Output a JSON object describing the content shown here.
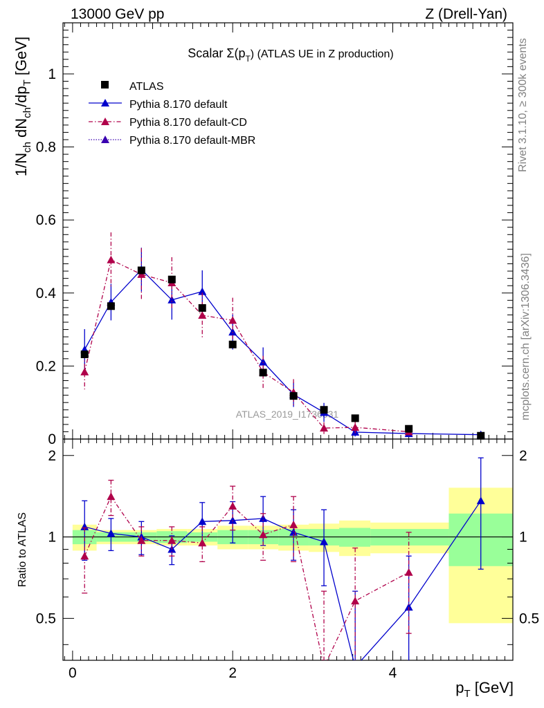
{
  "header": {
    "left_label": "13000 GeV pp",
    "right_label": "Z (Drell-Yan)"
  },
  "side_labels": {
    "rivet": "Rivet 3.1.10, ≥ 300k events",
    "mcplots": "mcplots.cern.ch [arXiv:1306.3436]"
  },
  "chart_data": {
    "type": "scatter",
    "title_main": "Scalar Σ(p",
    "title_sub": "T",
    "title_rest": ") (ATLAS UE in Z production)",
    "watermark": "ATLAS_2019_I1736531",
    "xlabel_main": "p",
    "xlabel_sub": "T",
    "xlabel_rest": " [GeV]",
    "ylabel_main": "1/N",
    "ylabel_sub1": "ch",
    "ylabel_mid": " dN",
    "ylabel_sub2": "ch",
    "ylabel_mid2": "/dp",
    "ylabel_sub3": "T",
    "ylabel_rest": " [GeV]",
    "ratio_ylabel": "Ratio to ATLAS",
    "xlim": [
      -0.12,
      5.5
    ],
    "ylim": [
      0,
      1.14
    ],
    "ratio_ylim": [
      0.35,
      2.3
    ],
    "x_ticks": [
      "0",
      "2",
      "4"
    ],
    "y_ticks": [
      "0",
      "0.2",
      "0.4",
      "0.6",
      "0.8",
      "1"
    ],
    "ratio_ticks": [
      "0.5",
      "1",
      "2"
    ],
    "data": {
      "name": "ATLAS",
      "x": [
        0.15,
        0.48,
        0.86,
        1.24,
        1.62,
        2.0,
        2.38,
        2.76,
        3.14,
        3.53,
        4.2,
        5.1
      ],
      "y": [
        0.232,
        0.364,
        0.462,
        0.437,
        0.359,
        0.259,
        0.182,
        0.118,
        0.08,
        0.057,
        0.028,
        0.009
      ],
      "bins": [
        [
          0,
          0.3
        ],
        [
          0.3,
          0.68
        ],
        [
          0.68,
          1.05
        ],
        [
          1.05,
          1.43
        ],
        [
          1.43,
          1.81
        ],
        [
          1.81,
          2.19
        ],
        [
          2.19,
          2.57
        ],
        [
          2.57,
          2.95
        ],
        [
          2.95,
          3.33
        ],
        [
          3.33,
          3.72
        ],
        [
          3.72,
          4.7
        ],
        [
          4.7,
          5.5
        ]
      ],
      "band_green": [
        0.06,
        0.04,
        0.04,
        0.05,
        0.04,
        0.06,
        0.06,
        0.07,
        0.07,
        0.08,
        0.07,
        0.22
      ],
      "band_yellow": [
        0.11,
        0.06,
        0.06,
        0.07,
        0.07,
        0.1,
        0.1,
        0.11,
        0.12,
        0.15,
        0.13,
        0.52
      ]
    },
    "series": [
      {
        "name": "Pythia 8.170 default",
        "color": "#0000cc",
        "style": "solid",
        "x": [
          0.15,
          0.48,
          0.86,
          1.24,
          1.62,
          2.0,
          2.38,
          2.76,
          3.14,
          3.53,
          4.2,
          5.1
        ],
        "y": [
          0.245,
          0.375,
          0.464,
          0.381,
          0.404,
          0.293,
          0.211,
          0.122,
          0.073,
          0.019,
          0.015,
          0.012
        ],
        "err": [
          0.056,
          0.05,
          0.06,
          0.054,
          0.058,
          0.048,
          0.04,
          0.034,
          0.026,
          0.012,
          0.009,
          0.005
        ],
        "ratio": [
          1.09,
          1.03,
          1.0,
          0.9,
          1.14,
          1.15,
          1.17,
          1.04,
          0.96,
          0.33,
          0.55,
          1.36
        ],
        "ratio_err": [
          0.27,
          0.14,
          0.14,
          0.11,
          0.2,
          0.2,
          0.24,
          0.22,
          0.3,
          0.3,
          0.3,
          0.6
        ]
      },
      {
        "name": "Pythia 8.170 default-CD",
        "color": "#b0004a",
        "style": "dashdot",
        "x": [
          0.15,
          0.48,
          0.86,
          1.24,
          1.62,
          2.0,
          2.38,
          2.76,
          3.14,
          3.53,
          4.2
        ],
        "y": [
          0.184,
          0.491,
          0.451,
          0.428,
          0.339,
          0.325,
          0.183,
          0.128,
          0.03,
          0.032,
          0.02
        ],
        "err": [
          0.048,
          0.075,
          0.072,
          0.07,
          0.062,
          0.062,
          0.045,
          0.036,
          0.016,
          0.016,
          0.01
        ],
        "ratio": [
          0.85,
          1.41,
          0.97,
          0.97,
          0.95,
          1.3,
          1.02,
          1.11,
          0.33,
          0.58,
          0.74
        ],
        "ratio_err": [
          0.23,
          0.21,
          0.12,
          0.12,
          0.14,
          0.24,
          0.2,
          0.3,
          0.3,
          0.33,
          0.3
        ]
      },
      {
        "name": "Pythia 8.170 default-MBR",
        "color": "#3a00b0",
        "style": "dotted",
        "x": [],
        "y": [],
        "err": [],
        "ratio": [],
        "ratio_err": []
      }
    ],
    "legend_position": "top-left"
  }
}
